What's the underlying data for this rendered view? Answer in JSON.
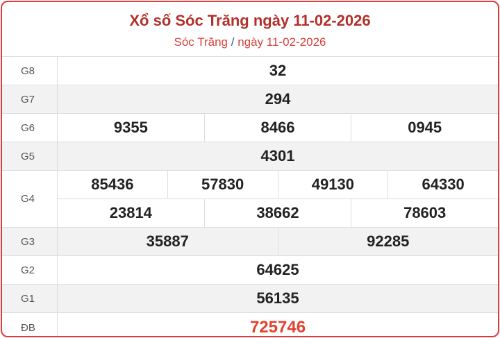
{
  "header": {
    "title": "Xổ số Sóc Trăng ngày 11-02-2026",
    "breadcrumb_province": "Sóc Trăng",
    "breadcrumb_separator": "/",
    "breadcrumb_date": "ngày 11-02-2026"
  },
  "prizes": [
    {
      "label": "G8",
      "numbers": [
        [
          "32"
        ]
      ]
    },
    {
      "label": "G7",
      "numbers": [
        [
          "294"
        ]
      ]
    },
    {
      "label": "G6",
      "numbers": [
        [
          "9355",
          "8466",
          "0945"
        ]
      ]
    },
    {
      "label": "G5",
      "numbers": [
        [
          "4301"
        ]
      ]
    },
    {
      "label": "G4",
      "numbers": [
        [
          "85436",
          "57830",
          "49130",
          "64330"
        ],
        [
          "23814",
          "38662",
          "78603"
        ]
      ]
    },
    {
      "label": "G3",
      "numbers": [
        [
          "35887",
          "92285"
        ]
      ]
    },
    {
      "label": "G2",
      "numbers": [
        [
          "64625"
        ]
      ]
    },
    {
      "label": "G1",
      "numbers": [
        [
          "56135"
        ]
      ]
    },
    {
      "label": "ĐB",
      "numbers": [
        [
          "725746"
        ]
      ]
    }
  ],
  "colors": {
    "border": "#e03a3a",
    "title": "#b3302a",
    "special": "#e2432e"
  }
}
